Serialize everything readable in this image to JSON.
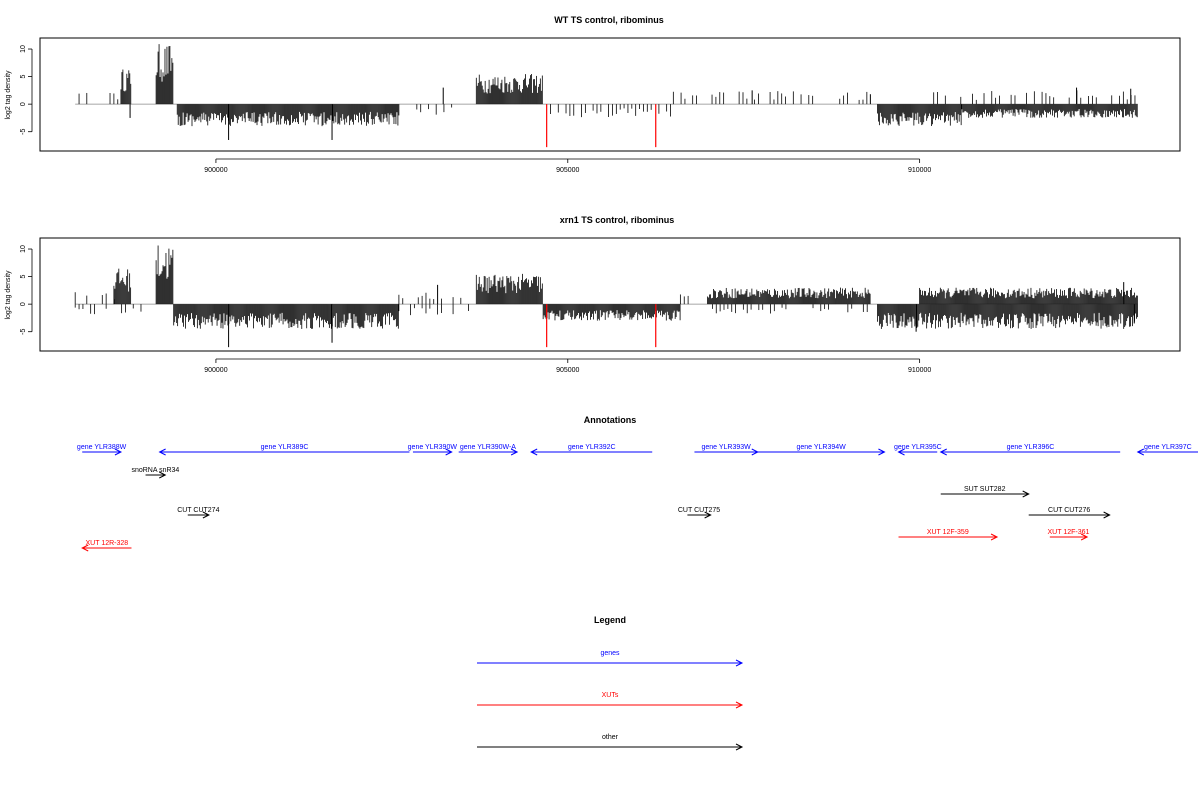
{
  "colors": {
    "gene": "#0000ff",
    "xut": "#ff0000",
    "other": "#000000",
    "highlight": "#ff0000",
    "bar": "#000000"
  },
  "chart_data": [
    {
      "type": "bar",
      "title": "WT TS control, ribominus",
      "ylabel": "log2 tag density",
      "xlim": [
        897500,
        913700
      ],
      "ylim": [
        -8.5,
        12
      ],
      "yticks": [
        -5,
        0,
        5,
        10
      ],
      "xticks": [
        900000,
        905000,
        910000
      ],
      "xtick_labels": [
        "900000",
        "905000",
        "910000"
      ],
      "dense_regions": [
        {
          "start": 898650,
          "end": 898800,
          "strand": "+",
          "max": 6.5
        },
        {
          "start": 899150,
          "end": 899400,
          "strand": "+",
          "max": 11
        },
        {
          "start": 899450,
          "end": 902600,
          "strand": "-",
          "max": 4
        },
        {
          "start": 903700,
          "end": 904650,
          "strand": "+",
          "max": 5.5
        },
        {
          "start": 909400,
          "end": 910600,
          "strand": "-",
          "max": 4
        },
        {
          "start": 910600,
          "end": 913100,
          "strand": "-",
          "max": 2.5
        }
      ],
      "sparse_regions": [
        {
          "start": 898000,
          "end": 898650,
          "strand": "+",
          "max": 2.5
        },
        {
          "start": 902800,
          "end": 903600,
          "strand": "-",
          "max": 2
        },
        {
          "start": 904700,
          "end": 906500,
          "strand": "-",
          "max": 2.5
        },
        {
          "start": 906500,
          "end": 909300,
          "strand": "+",
          "max": 2.5
        },
        {
          "start": 910200,
          "end": 913100,
          "strand": "+",
          "max": 2.5
        }
      ],
      "spikes": [
        {
          "x": 900180,
          "y": -6.5
        },
        {
          "x": 901650,
          "y": -6.5
        },
        {
          "x": 898780,
          "y": -2.5
        },
        {
          "x": 903230,
          "y": 3
        },
        {
          "x": 907620,
          "y": 2.5
        },
        {
          "x": 912230,
          "y": 3
        },
        {
          "x": 913000,
          "y": 2.8
        },
        {
          "x": 909300,
          "y": 1.8
        }
      ],
      "highlights": [
        {
          "x": 904700,
          "y": -7.8
        },
        {
          "x": 906250,
          "y": -7.8
        }
      ]
    },
    {
      "type": "bar",
      "title": "xrn1 TS control, ribominus",
      "ylabel": "log2 tag density",
      "xlim": [
        897500,
        913700
      ],
      "ylim": [
        -8.5,
        12
      ],
      "yticks": [
        -5,
        0,
        5,
        10
      ],
      "xticks": [
        900000,
        905000,
        910000
      ],
      "xtick_labels": [
        "900000",
        "905000",
        "910000"
      ],
      "dense_regions": [
        {
          "start": 898550,
          "end": 898800,
          "strand": "+",
          "max": 6.5
        },
        {
          "start": 899150,
          "end": 899400,
          "strand": "+",
          "max": 11
        },
        {
          "start": 899400,
          "end": 902600,
          "strand": "-",
          "max": 4.5
        },
        {
          "start": 903700,
          "end": 904650,
          "strand": "+",
          "max": 5.5
        },
        {
          "start": 904650,
          "end": 906600,
          "strand": "-",
          "max": 3
        },
        {
          "start": 907000,
          "end": 909300,
          "strand": "+",
          "max": 3
        },
        {
          "start": 909400,
          "end": 913100,
          "strand": "-",
          "max": 4.5
        },
        {
          "start": 910000,
          "end": 913100,
          "strand": "+",
          "max": 3
        }
      ],
      "sparse_regions": [
        {
          "start": 898000,
          "end": 898550,
          "strand": "+",
          "max": 2.5
        },
        {
          "start": 898000,
          "end": 899000,
          "strand": "-",
          "max": 2
        },
        {
          "start": 902600,
          "end": 903600,
          "strand": "+",
          "max": 2.5
        },
        {
          "start": 902600,
          "end": 903600,
          "strand": "-",
          "max": 2
        },
        {
          "start": 906600,
          "end": 907000,
          "strand": "+",
          "max": 2.5
        },
        {
          "start": 907000,
          "end": 909300,
          "strand": "-",
          "max": 1.8
        }
      ],
      "spikes": [
        {
          "x": 900180,
          "y": -7.8
        },
        {
          "x": 901650,
          "y": -7
        },
        {
          "x": 903150,
          "y": 3.5
        },
        {
          "x": 909950,
          "y": -5
        },
        {
          "x": 912900,
          "y": 4
        },
        {
          "x": 913050,
          "y": -3.5
        }
      ],
      "highlights": [
        {
          "x": 904700,
          "y": -7.8
        },
        {
          "x": 906250,
          "y": -7.8
        }
      ]
    }
  ],
  "annotations": {
    "title": "Annotations",
    "features": [
      {
        "label": "gene YLR388W",
        "kind": "gene",
        "start": 898100,
        "end": 898650,
        "strand": "+",
        "row": 0
      },
      {
        "label": "gene YLR389C",
        "kind": "gene",
        "start": 899200,
        "end": 902750,
        "strand": "-",
        "row": 0
      },
      {
        "label": "gene YLR390W",
        "kind": "gene",
        "start": 902800,
        "end": 903350,
        "strand": "+",
        "row": 0
      },
      {
        "label": "gene YLR390W-A",
        "kind": "gene",
        "start": 903450,
        "end": 904280,
        "strand": "+",
        "row": 0
      },
      {
        "label": "gene YLR392C",
        "kind": "gene",
        "start": 904480,
        "end": 906200,
        "strand": "-",
        "row": 0
      },
      {
        "label": "gene YLR393W",
        "kind": "gene",
        "start": 906800,
        "end": 907700,
        "strand": "+",
        "row": 0
      },
      {
        "label": "gene YLR394W",
        "kind": "gene",
        "start": 907700,
        "end": 909500,
        "strand": "+",
        "row": 0
      },
      {
        "label": "gene YLR395C",
        "kind": "gene",
        "start": 909700,
        "end": 910250,
        "strand": "-",
        "row": 0
      },
      {
        "label": "gene YLR396C",
        "kind": "gene",
        "start": 910300,
        "end": 912850,
        "strand": "-",
        "row": 0
      },
      {
        "label": "gene YLR397C",
        "kind": "gene",
        "start": 913100,
        "end": 915500,
        "strand": "-",
        "row": 0
      },
      {
        "label": "snoRNA snR34",
        "kind": "other",
        "start": 899000,
        "end": 899280,
        "strand": "+",
        "row": 1
      },
      {
        "label": "SUT SUT282",
        "kind": "other",
        "start": 910300,
        "end": 911550,
        "strand": "+",
        "row": 2
      },
      {
        "label": "CUT CUT274",
        "kind": "other",
        "start": 899600,
        "end": 899900,
        "strand": "+",
        "row": 3
      },
      {
        "label": "CUT CUT275",
        "kind": "other",
        "start": 906700,
        "end": 907030,
        "strand": "+",
        "row": 3
      },
      {
        "label": "CUT CUT276",
        "kind": "other",
        "start": 911550,
        "end": 912700,
        "strand": "+",
        "row": 3
      },
      {
        "label": "XUT 12F-359",
        "kind": "xut",
        "start": 909700,
        "end": 911100,
        "strand": "+",
        "row": 4
      },
      {
        "label": "XUT 12F-361",
        "kind": "xut",
        "start": 911850,
        "end": 912380,
        "strand": "+",
        "row": 4
      },
      {
        "label": "XUT 12R-328",
        "kind": "xut",
        "start": 898100,
        "end": 898800,
        "strand": "-",
        "row": 5
      }
    ]
  },
  "legend": {
    "title": "Legend",
    "items": [
      {
        "label": "genes",
        "kind": "gene"
      },
      {
        "label": "XUTs",
        "kind": "xut"
      },
      {
        "label": "other",
        "kind": "other"
      }
    ]
  }
}
